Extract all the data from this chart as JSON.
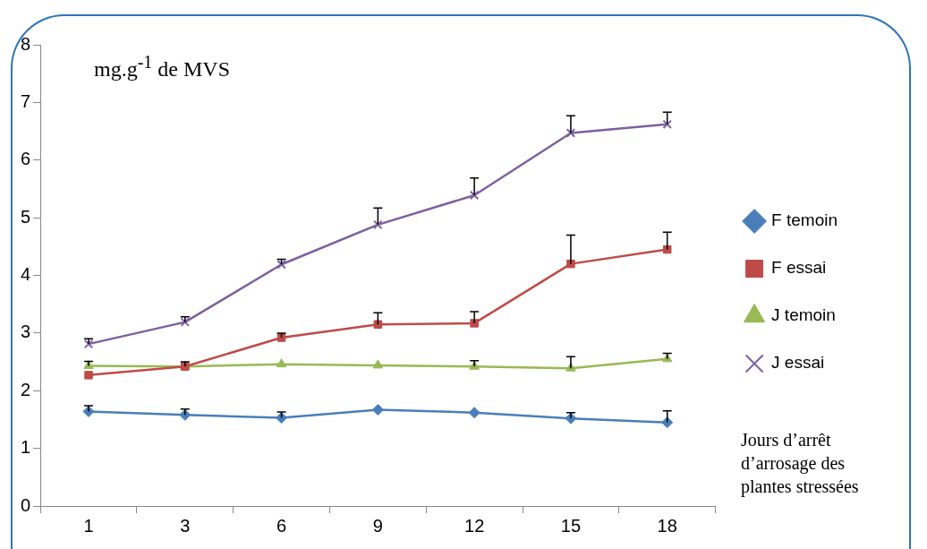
{
  "chart_data": {
    "type": "line",
    "ylabel": "mg.g$^{-1}$ de MVS",
    "xlabel": "Jours d’arrêt d’arrosage des plantes stressées",
    "categories": [
      "1",
      "3",
      "6",
      "9",
      "12",
      "15",
      "18"
    ],
    "ylim": [
      0,
      8
    ],
    "yticks": [
      0,
      1,
      2,
      3,
      4,
      5,
      6,
      7,
      8
    ],
    "grid": false,
    "legend": "right",
    "series": [
      {
        "name": "F temoin",
        "color": "#4a7ebb",
        "marker": "diamond",
        "values": [
          1.64,
          1.58,
          1.53,
          1.67,
          1.62,
          1.52,
          1.45
        ],
        "errors": [
          [
            1.64,
            1.74
          ],
          [
            1.58,
            1.68
          ],
          [
            1.53,
            1.63
          ],
          null,
          null,
          [
            1.52,
            1.62
          ],
          [
            1.45,
            1.65
          ]
        ]
      },
      {
        "name": "F essai",
        "color": "#be4b48",
        "marker": "square",
        "values": [
          2.27,
          2.42,
          2.92,
          3.15,
          3.17,
          4.2,
          4.45
        ],
        "errors": [
          null,
          null,
          [
            2.92,
            3.0
          ],
          [
            3.15,
            3.35
          ],
          [
            3.17,
            3.37
          ],
          [
            4.2,
            4.7
          ],
          [
            4.45,
            4.75
          ]
        ]
      },
      {
        "name": "J temoin",
        "color": "#98b954",
        "marker": "triangle",
        "values": [
          2.43,
          2.42,
          2.46,
          2.44,
          2.42,
          2.39,
          2.55
        ],
        "errors": [
          [
            2.43,
            2.51
          ],
          [
            2.42,
            2.5
          ],
          null,
          null,
          [
            2.42,
            2.52
          ],
          [
            2.39,
            2.59
          ],
          [
            2.55,
            2.65
          ]
        ]
      },
      {
        "name": "J essai",
        "color": "#7d60a0",
        "marker": "cross",
        "values": [
          2.81,
          3.19,
          4.19,
          4.88,
          5.39,
          6.47,
          6.62
        ],
        "errors": [
          [
            2.81,
            2.9
          ],
          [
            3.19,
            3.28
          ],
          [
            4.19,
            4.28
          ],
          [
            4.88,
            5.17
          ],
          [
            5.39,
            5.69
          ],
          [
            6.47,
            6.77
          ],
          [
            6.62,
            6.83
          ]
        ]
      }
    ]
  }
}
